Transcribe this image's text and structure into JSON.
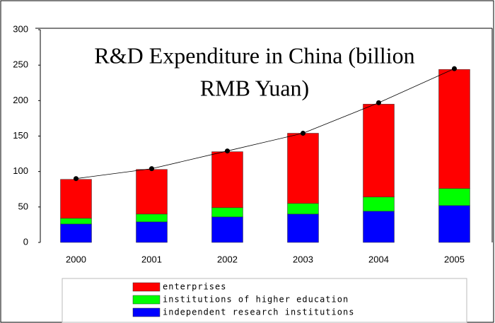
{
  "chart_data": {
    "type": "stacked_bar",
    "title_lines": [
      "R&D Expenditure in China (billion",
      "RMB Yuan)"
    ],
    "categories": [
      "2000",
      "2001",
      "2002",
      "2003",
      "2004",
      "2005"
    ],
    "series": [
      {
        "name": "independent research institutions",
        "color": "#0000ff",
        "values": [
          26,
          29,
          36,
          40,
          44,
          52
        ]
      },
      {
        "name": "institutions of higher education",
        "color": "#00ff00",
        "values": [
          8,
          11,
          13,
          15,
          20,
          24
        ]
      },
      {
        "name": "enterprises",
        "color": "#ff0000",
        "values": [
          55,
          63,
          79,
          99,
          131,
          168
        ]
      }
    ],
    "totals": [
      90,
      104,
      129,
      154,
      197,
      245
    ],
    "ylim": [
      0,
      300
    ],
    "yticks": [
      0,
      50,
      100,
      150,
      200,
      250,
      300
    ]
  }
}
